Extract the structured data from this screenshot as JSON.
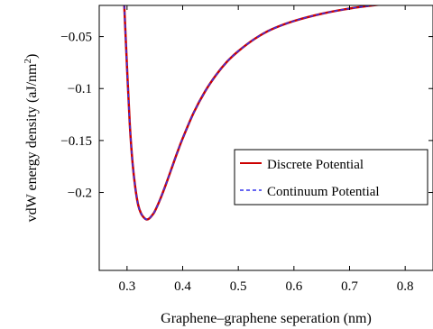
{
  "chart_data": {
    "type": "line",
    "xlabel": "Graphene–graphene seperation (nm)",
    "ylabel": "vdW energy density (aJ/nm",
    "ylabel_superscript": "2",
    "ylabel_suffix": ")",
    "xlim": [
      0.25,
      0.85
    ],
    "ylim": [
      -0.275,
      -0.02
    ],
    "xticks": [
      0.3,
      0.4,
      0.5,
      0.6,
      0.7,
      0.8
    ],
    "xtick_labels": [
      "0.3",
      "0.4",
      "0.5",
      "0.6",
      "0.7",
      "0.8"
    ],
    "yticks": [
      -0.05,
      -0.1,
      -0.15,
      -0.2
    ],
    "ytick_labels": [
      "−0.05",
      "−0.1",
      "−0.15",
      "−0.2"
    ],
    "grid": false,
    "legend_position": "right",
    "series": [
      {
        "name": "Discrete Potential",
        "color": "#cc0000",
        "dash": "solid",
        "x": [
          0.295,
          0.3,
          0.305,
          0.31,
          0.315,
          0.32,
          0.325,
          0.33,
          0.335,
          0.34,
          0.345,
          0.35,
          0.36,
          0.37,
          0.38,
          0.39,
          0.4,
          0.42,
          0.44,
          0.46,
          0.48,
          0.5,
          0.53,
          0.56,
          0.6,
          0.65,
          0.7,
          0.75,
          0.8,
          0.85
        ],
        "y": [
          -0.02,
          -0.08,
          -0.135,
          -0.172,
          -0.196,
          -0.212,
          -0.22,
          -0.224,
          -0.226,
          -0.225,
          -0.222,
          -0.218,
          -0.206,
          -0.192,
          -0.177,
          -0.162,
          -0.148,
          -0.123,
          -0.103,
          -0.087,
          -0.074,
          -0.064,
          -0.052,
          -0.043,
          -0.035,
          -0.028,
          -0.023,
          -0.0195,
          -0.017,
          -0.015
        ]
      },
      {
        "name": "Continuum Potential",
        "color": "#3333ee",
        "dash": "dashed",
        "x": [
          0.295,
          0.3,
          0.305,
          0.31,
          0.315,
          0.32,
          0.325,
          0.33,
          0.335,
          0.34,
          0.345,
          0.35,
          0.36,
          0.37,
          0.38,
          0.39,
          0.4,
          0.42,
          0.44,
          0.46,
          0.48,
          0.5,
          0.53,
          0.56,
          0.6,
          0.65,
          0.7,
          0.75,
          0.8,
          0.85
        ],
        "y": [
          -0.02,
          -0.08,
          -0.135,
          -0.172,
          -0.196,
          -0.212,
          -0.22,
          -0.224,
          -0.226,
          -0.225,
          -0.222,
          -0.218,
          -0.206,
          -0.192,
          -0.177,
          -0.162,
          -0.148,
          -0.123,
          -0.103,
          -0.087,
          -0.074,
          -0.064,
          -0.052,
          -0.043,
          -0.035,
          -0.028,
          -0.023,
          -0.0195,
          -0.017,
          -0.015
        ]
      }
    ]
  }
}
